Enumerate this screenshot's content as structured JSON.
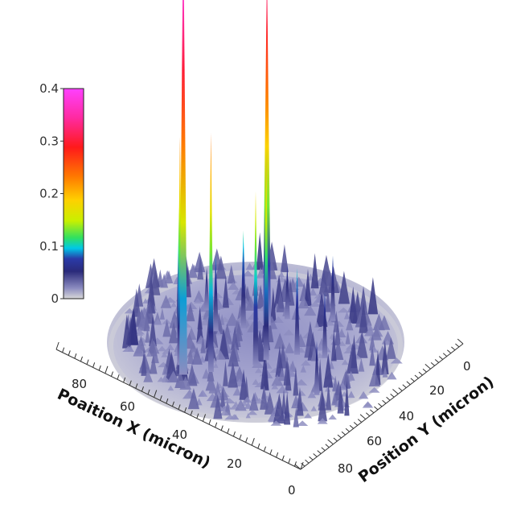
{
  "chart_data": {
    "type": "surface3d",
    "title": "",
    "xlabel": "Poaition X (micron)",
    "ylabel": "Position Y (micron)",
    "zlabel": "",
    "x_ticks": [
      "20",
      "40",
      "60",
      "80"
    ],
    "y_ticks": [
      "0",
      "20",
      "40",
      "60",
      "80"
    ],
    "origin_label": "0",
    "xlim": [
      0,
      100
    ],
    "ylim": [
      0,
      100
    ],
    "zlim": [
      0,
      0.4
    ],
    "colorbar": {
      "ticks": [
        "0",
        "0.1",
        "0.2",
        "0.3",
        "0.4"
      ],
      "min": 0,
      "max": 0.4,
      "colormap": [
        "#d8d8d8",
        "#8c8cc0",
        "#2a2a7a",
        "#2a3aa8",
        "#00c8e8",
        "#30e060",
        "#c8f000",
        "#ffd000",
        "#ff7a00",
        "#ff1a1a",
        "#ff2aa0",
        "#ff40ff"
      ]
    },
    "domain": "circular, radius ~50 micron",
    "peaks": [
      {
        "x": 60,
        "y": 18,
        "z": 0.42
      },
      {
        "x": 55,
        "y": 62,
        "z": 0.33
      },
      {
        "x": 54,
        "y": 26,
        "z": 0.22
      },
      {
        "x": 64,
        "y": 22,
        "z": 0.21
      },
      {
        "x": 44,
        "y": 45,
        "z": 0.19
      },
      {
        "x": 45,
        "y": 40,
        "z": 0.16
      },
      {
        "x": 73,
        "y": 35,
        "z": 0.12
      },
      {
        "x": 60,
        "y": 55,
        "z": 0.09
      },
      {
        "x": 38,
        "y": 55,
        "z": 0.08
      },
      {
        "x": 40,
        "y": 80,
        "z": 0.06
      },
      {
        "x": 66,
        "y": 47,
        "z": 0.07
      },
      {
        "x": 20,
        "y": 40,
        "z": 0.05
      },
      {
        "x": 52,
        "y": 70,
        "z": 0.05
      },
      {
        "x": 30,
        "y": 60,
        "z": 0.06
      },
      {
        "x": 75,
        "y": 55,
        "z": 0.04
      }
    ]
  }
}
